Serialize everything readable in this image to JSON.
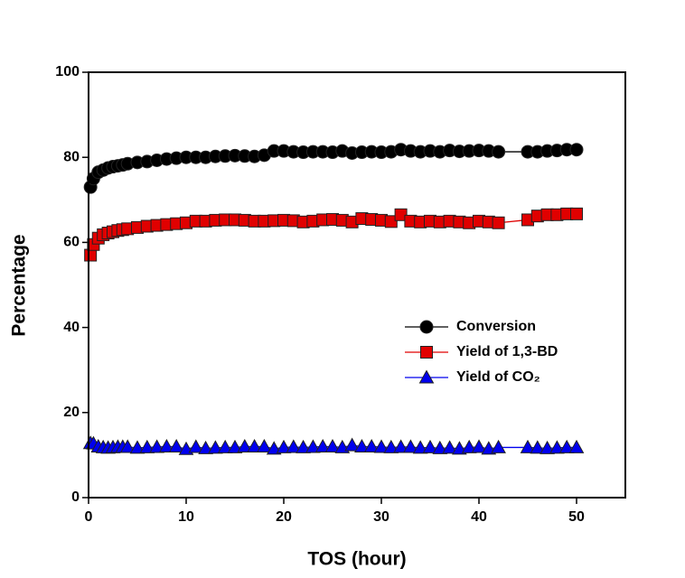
{
  "chart_data": {
    "type": "line",
    "x_label": "TOS (hour)",
    "y_label": "Percentage",
    "x": [
      0.2,
      0.5,
      1,
      1.5,
      2,
      2.5,
      3,
      3.5,
      4,
      5,
      6,
      7,
      8,
      9,
      10,
      11,
      12,
      13,
      14,
      15,
      16,
      17,
      18,
      19,
      20,
      21,
      22,
      23,
      24,
      25,
      26,
      27,
      28,
      29,
      30,
      31,
      32,
      33,
      34,
      35,
      36,
      37,
      38,
      39,
      40,
      41,
      42,
      45,
      46,
      47,
      48,
      49,
      50
    ],
    "series": [
      {
        "name": "Conversion",
        "color": "#000000",
        "marker": "circle",
        "values": [
          73,
          75,
          76.5,
          77,
          77.5,
          77.8,
          78,
          78.2,
          78.5,
          78.8,
          79,
          79.3,
          79.6,
          79.8,
          80,
          80,
          80,
          80.2,
          80.3,
          80.4,
          80.3,
          80.2,
          80.5,
          81.5,
          81.5,
          81.3,
          81.2,
          81.3,
          81.3,
          81.2,
          81.5,
          81,
          81.2,
          81.3,
          81.2,
          81.3,
          81.8,
          81.5,
          81.3,
          81.5,
          81.3,
          81.6,
          81.4,
          81.5,
          81.6,
          81.5,
          81.3,
          81.3,
          81.3,
          81.5,
          81.6,
          81.8,
          81.8
        ]
      },
      {
        "name": "Yield of 1,3-BD",
        "color": "#e00000",
        "marker": "square",
        "values": [
          57,
          59.5,
          61,
          61.8,
          62.2,
          62.5,
          62.8,
          63,
          63.2,
          63.5,
          63.8,
          64,
          64.2,
          64.4,
          64.6,
          65,
          65,
          65.2,
          65.3,
          65.3,
          65.2,
          65,
          65,
          65.1,
          65.2,
          65.1,
          64.8,
          65,
          65.3,
          65.4,
          65.2,
          64.8,
          65.6,
          65.4,
          65.2,
          64.9,
          66.5,
          65,
          64.8,
          65,
          64.8,
          65,
          64.8,
          64.6,
          65,
          64.8,
          64.6,
          65.3,
          66.2,
          66.5,
          66.5,
          66.7,
          66.7
        ]
      },
      {
        "name": "Yield of CO₂",
        "color": "#0000ee",
        "marker": "triangle",
        "values": [
          12.8,
          12.7,
          12,
          11.8,
          11.7,
          11.8,
          11.9,
          11.9,
          11.9,
          11.7,
          11.8,
          11.9,
          12,
          12,
          11.4,
          11.9,
          11.6,
          11.7,
          11.8,
          11.8,
          12,
          12,
          12,
          11.5,
          11.8,
          11.9,
          11.8,
          11.9,
          12,
          12,
          11.8,
          12.3,
          12,
          12,
          11.9,
          11.8,
          11.9,
          11.9,
          11.7,
          11.8,
          11.6,
          11.7,
          11.5,
          11.8,
          11.9,
          11.5,
          11.8,
          11.8,
          11.7,
          11.6,
          11.7,
          11.8,
          11.8
        ]
      }
    ],
    "xlim": [
      0,
      55
    ],
    "xticks": [
      0,
      10,
      20,
      30,
      40,
      50
    ],
    "ylim": [
      0,
      100
    ],
    "yticks": [
      0,
      20,
      40,
      60,
      80,
      100
    ],
    "grid": false,
    "legend": "right"
  }
}
